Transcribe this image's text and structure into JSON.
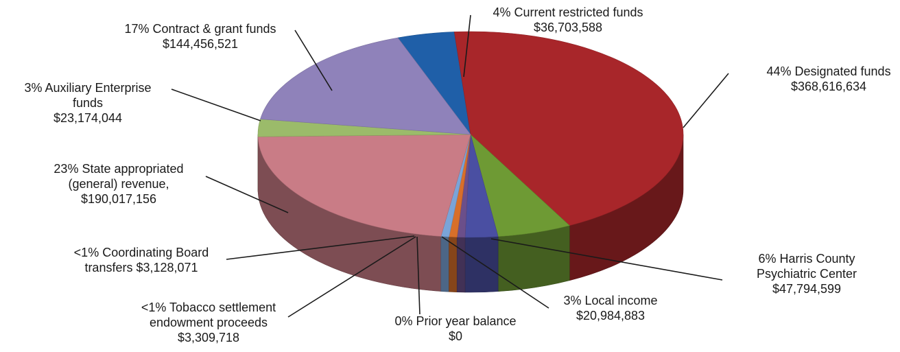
{
  "chart_data": {
    "type": "pie",
    "title": "",
    "unit": "$",
    "slices": [
      {
        "key": "current_restricted",
        "pct_label": "4%",
        "name": "Current  restricted funds",
        "amount": "$36,703,588",
        "value": 36703588,
        "color": "#1f5fa8"
      },
      {
        "key": "designated",
        "pct_label": "44%",
        "name": "Designated funds",
        "amount": "$368,616,634",
        "value": 368616634,
        "color": "#a8262a"
      },
      {
        "key": "harris",
        "pct_label": "6%",
        "name": "Harris County Psychiatric Center",
        "amount": "$47,794,599",
        "value": 47794599,
        "color": "#6e9a34"
      },
      {
        "key": "local_income",
        "pct_label": "3%",
        "name": "Local income",
        "amount": "$20,984,883",
        "value": 20984883,
        "color": "#4a4fa2"
      },
      {
        "key": "prior_year",
        "pct_label": "0%",
        "name": "Prior year balance",
        "amount": "$0",
        "value": 0,
        "color": "#6b4f8a"
      },
      {
        "key": "tobacco",
        "pct_label": "<1%",
        "name": "Tobacco settlement endowment proceeds",
        "amount": "$3,309,718",
        "value": 3309718,
        "color": "#d86f2a"
      },
      {
        "key": "coordinating",
        "pct_label": "<1%",
        "name": "Coordinating Board transfers",
        "amount": "$3,128,071",
        "value": 3128071,
        "color": "#7aa4d8"
      },
      {
        "key": "state",
        "pct_label": "23%",
        "name": "State appropriated (general) revenue,",
        "amount": "$190,017,156",
        "value": 190017156,
        "color": "#c97c86"
      },
      {
        "key": "auxiliary",
        "pct_label": "3%",
        "name": "Auxiliary Enterprise funds",
        "amount": "$23,174,044",
        "value": 23174044,
        "color": "#9bbb6a"
      },
      {
        "key": "contract",
        "pct_label": "17%",
        "name": "Contract & grant funds",
        "amount": "$144,456,521",
        "value": 144456521,
        "color": "#8f82ba"
      }
    ],
    "labels": [
      {
        "key": "current_restricted",
        "lines": [
          "4%  Current  restricted funds",
          "$36,703,588"
        ]
      },
      {
        "key": "designated",
        "lines": [
          "44%  Designated funds",
          "$368,616,634"
        ]
      },
      {
        "key": "harris",
        "lines": [
          "6%  Harris County",
          "Psychiatric Center",
          "$47,794,599"
        ]
      },
      {
        "key": "local_income",
        "lines": [
          "3%  Local income",
          "$20,984,883"
        ]
      },
      {
        "key": "prior_year",
        "lines": [
          "0% Prior year balance",
          "$0"
        ]
      },
      {
        "key": "tobacco",
        "lines": [
          "<1% Tobacco settlement",
          "endowment proceeds",
          "$3,309,718"
        ]
      },
      {
        "key": "coordinating",
        "lines": [
          "<1% Coordinating Board",
          "transfers  $3,128,071"
        ]
      },
      {
        "key": "state",
        "lines": [
          "23%  State appropriated",
          "(general) revenue,",
          "$190,017,156"
        ]
      },
      {
        "key": "auxiliary",
        "lines": [
          "3%  Auxiliary Enterprise",
          "funds",
          "$23,174,044"
        ]
      },
      {
        "key": "contract",
        "lines": [
          "17% Contract & grant funds",
          "$144,456,521"
        ]
      }
    ]
  }
}
